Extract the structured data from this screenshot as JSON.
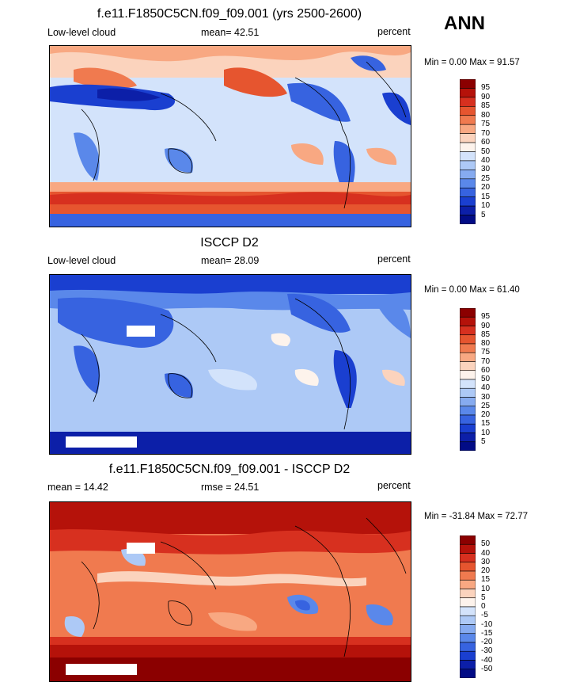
{
  "season": "ANN",
  "panels": [
    {
      "title": "f.e11.F1850C5CN.f09_f09.001 (yrs 2500-2600)",
      "left": "Low-level cloud",
      "center": "mean=  42.51",
      "right": "percent",
      "minmax": "Min =   0.00 Max =  91.57",
      "colorbar": {
        "levels": [
          "95",
          "90",
          "85",
          "80",
          "75",
          "70",
          "60",
          "50",
          "40",
          "30",
          "25",
          "20",
          "15",
          "10",
          "5"
        ],
        "colors": [
          "#8b0000",
          "#b5120a",
          "#d7301f",
          "#e6552f",
          "#f07a4f",
          "#f8a882",
          "#fbd3bd",
          "#fdf3ec",
          "#d3e3fb",
          "#adc9f6",
          "#86abf0",
          "#5a88ea",
          "#3763e0",
          "#1a3fd0",
          "#0c1fa8",
          "#020c86"
        ]
      }
    },
    {
      "title": "ISCCP D2",
      "left": "Low-level cloud",
      "center": "mean=  28.09",
      "right": "percent",
      "minmax": "Min =   0.00 Max =  61.40",
      "colorbar": {
        "levels": [
          "95",
          "90",
          "85",
          "80",
          "75",
          "70",
          "60",
          "50",
          "40",
          "30",
          "25",
          "20",
          "15",
          "10",
          "5"
        ],
        "colors": [
          "#8b0000",
          "#b5120a",
          "#d7301f",
          "#e6552f",
          "#f07a4f",
          "#f8a882",
          "#fbd3bd",
          "#fdf3ec",
          "#d3e3fb",
          "#adc9f6",
          "#86abf0",
          "#5a88ea",
          "#3763e0",
          "#1a3fd0",
          "#0c1fa8",
          "#020c86"
        ]
      }
    },
    {
      "title": "f.e11.F1850C5CN.f09_f09.001 - ISCCP D2",
      "left": "mean =  14.42",
      "center": "rmse =  24.51",
      "right": "percent",
      "minmax": "Min = -31.84 Max =  72.77",
      "colorbar": {
        "levels": [
          "50",
          "40",
          "30",
          "20",
          "15",
          "10",
          "5",
          "0",
          "-5",
          "-10",
          "-15",
          "-20",
          "-30",
          "-40",
          "-50"
        ],
        "colors": [
          "#8b0000",
          "#b5120a",
          "#d7301f",
          "#e6552f",
          "#f07a4f",
          "#f8a882",
          "#fbd3bd",
          "#fdf3ec",
          "#d3e3fb",
          "#adc9f6",
          "#86abf0",
          "#5a88ea",
          "#3763e0",
          "#1a3fd0",
          "#0c1fa8",
          "#020c86"
        ]
      }
    }
  ],
  "chart_data": [
    {
      "type": "heatmap",
      "title": "f.e11.F1850C5CN.f09_f09.001 (yrs 2500-2600)",
      "variable": "Low-level cloud",
      "units": "percent",
      "mean": 42.51,
      "min": 0.0,
      "max": 91.57,
      "contour_levels": [
        5,
        10,
        15,
        20,
        25,
        30,
        40,
        50,
        60,
        70,
        75,
        80,
        85,
        90,
        95
      ]
    },
    {
      "type": "heatmap",
      "title": "ISCCP D2",
      "variable": "Low-level cloud",
      "units": "percent",
      "mean": 28.09,
      "min": 0.0,
      "max": 61.4,
      "contour_levels": [
        5,
        10,
        15,
        20,
        25,
        30,
        40,
        50,
        60,
        70,
        75,
        80,
        85,
        90,
        95
      ]
    },
    {
      "type": "heatmap",
      "title": "f.e11.F1850C5CN.f09_f09.001 - ISCCP D2",
      "units": "percent",
      "mean": 14.42,
      "rmse": 24.51,
      "min": -31.84,
      "max": 72.77,
      "contour_levels": [
        -50,
        -40,
        -30,
        -20,
        -15,
        -10,
        -5,
        0,
        5,
        10,
        15,
        20,
        30,
        40,
        50
      ]
    }
  ]
}
